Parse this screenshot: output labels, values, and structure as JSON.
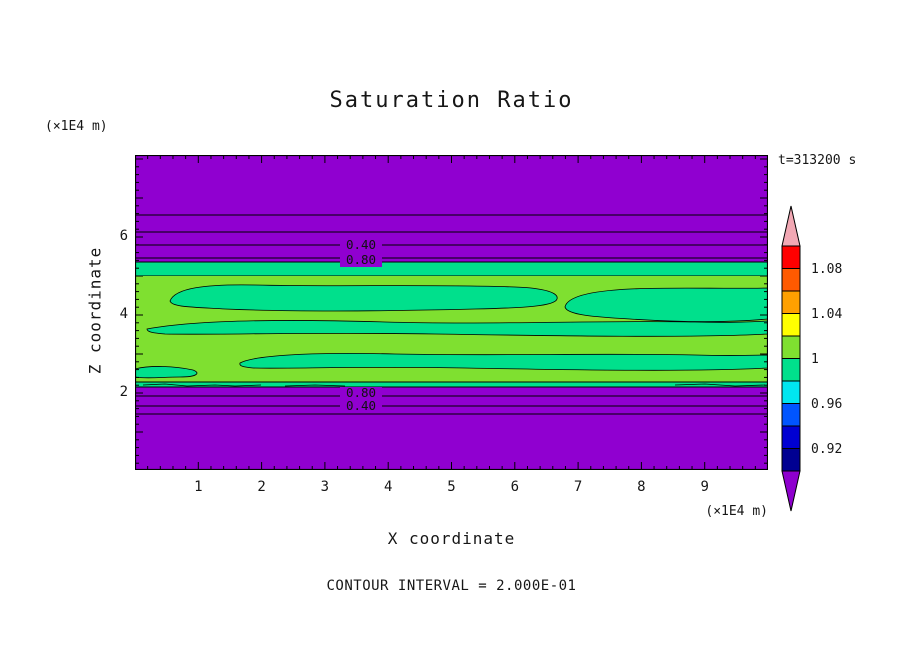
{
  "page": {
    "title": "Saturation Ratio",
    "unit_top_left": "(×1E4 m)",
    "unit_bottom_right": "(×1E4 m)",
    "time_label": "t=313200 s",
    "x_axis_label": "X coordinate",
    "y_axis_label": "Z coordinate",
    "footer": "CONTOUR INTERVAL = 2.000E-01"
  },
  "chart_data": {
    "type": "heatmap",
    "subtype": "filled-contour",
    "title": "Saturation Ratio",
    "xlabel": "X coordinate",
    "ylabel": "Z coordinate",
    "x_unit": "(×1E4 m)",
    "y_unit": "(×1E4 m)",
    "time": "t=313200 s",
    "contour_interval": "2.000E-01",
    "xlim": [
      0,
      10
    ],
    "ylim": [
      0,
      8.1
    ],
    "x_ticks": [
      1,
      2,
      3,
      4,
      5,
      6,
      7,
      8,
      9
    ],
    "y_ticks": [
      2,
      4,
      6
    ],
    "contour_labels": {
      "upper": [
        "0.40",
        "0.80"
      ],
      "lower": [
        "0.80",
        "0.40"
      ]
    },
    "colorbar": {
      "tick_labels": [
        "1.08",
        "1.04",
        "1",
        "0.96",
        "0.92"
      ],
      "segment_colors_top_to_bottom": [
        "#ff0000",
        "#ff5a00",
        "#ffa000",
        "#ffff00",
        "#7fe030",
        "#00e08c",
        "#00e6f0",
        "#0055ff",
        "#0000d2",
        "#000091"
      ],
      "arrow_top_color": "#f2a8b4",
      "arrow_bottom_color": "#8e00ce"
    },
    "field_colors": {
      "low_saturation_background": "#9000d0",
      "band_near_one": "#7fe030",
      "band_lenses": "#00e08c"
    }
  }
}
